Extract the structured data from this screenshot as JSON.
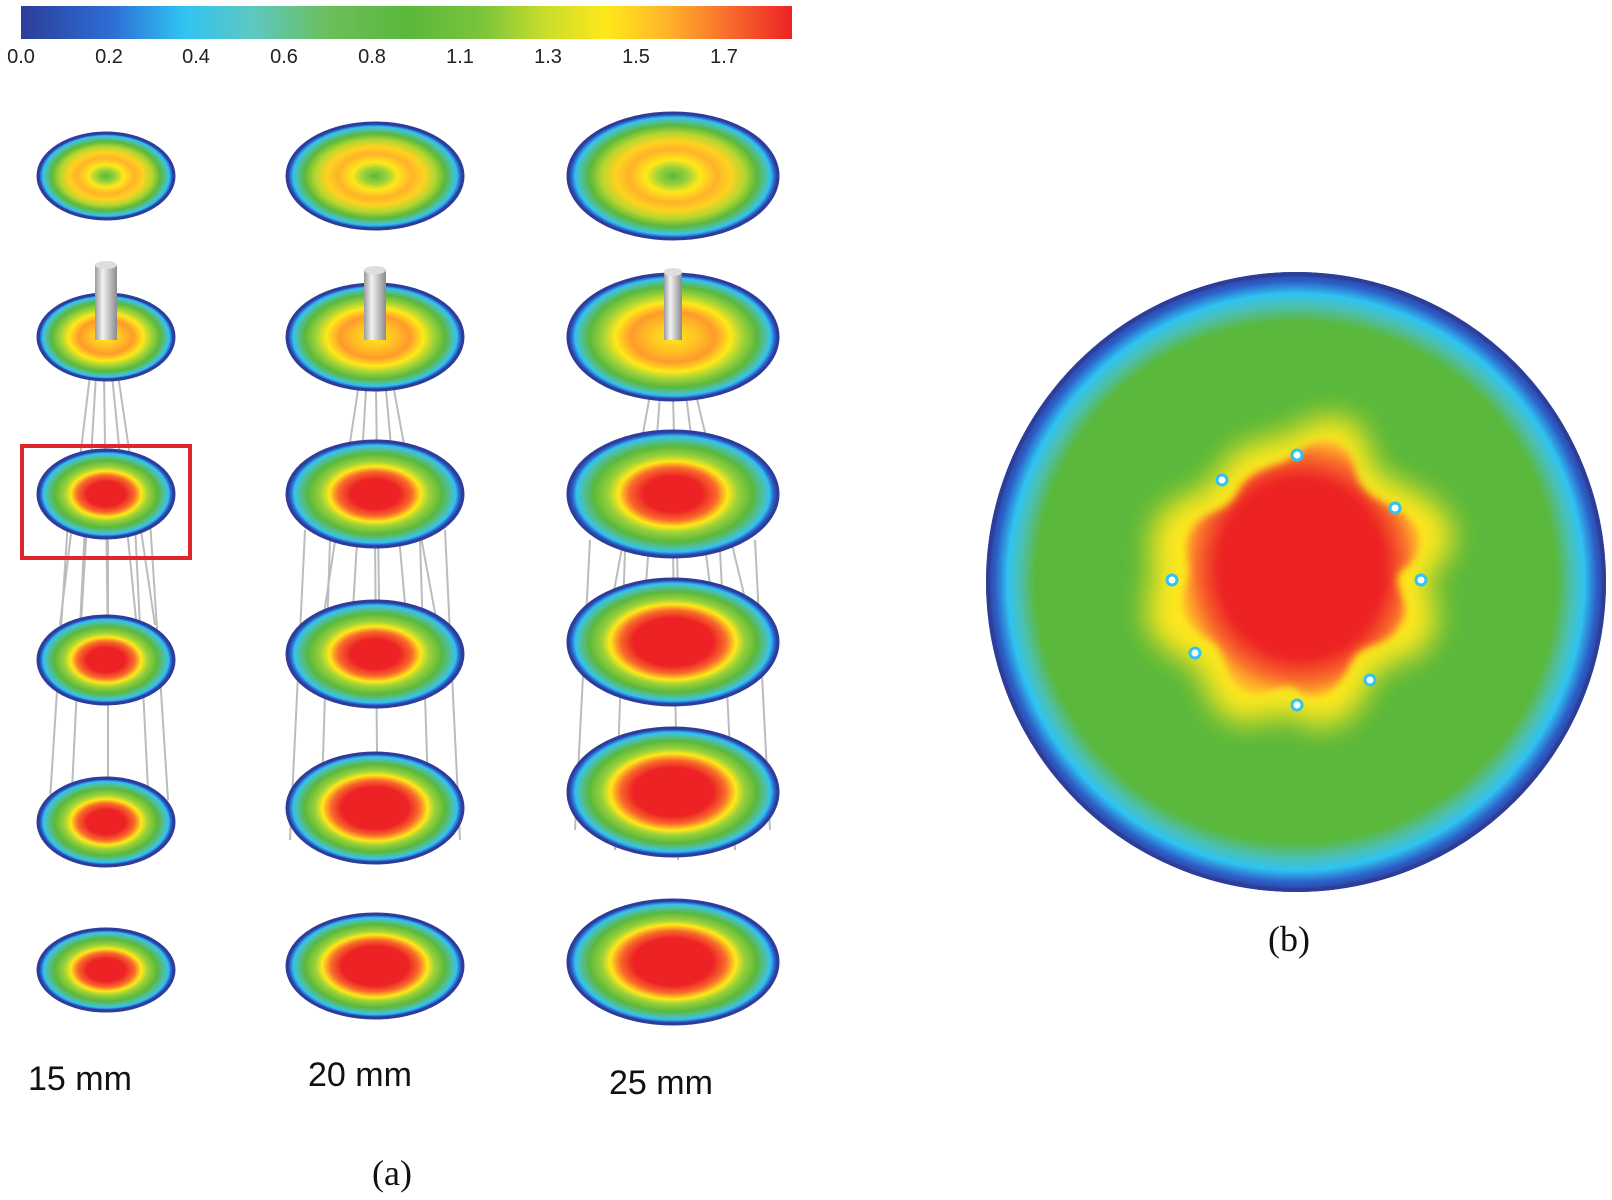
{
  "colorbar": {
    "ticks": [
      "0.0",
      "0.2",
      "0.4",
      "0.6",
      "0.8",
      "1.1",
      "1.3",
      "1.5",
      "1.7"
    ],
    "colors": {
      "low": "#2c3e99",
      "cyan": "#2fc3f2",
      "green": "#5ab83c",
      "yellow": "#ffe81a",
      "orange": "#f86a2c",
      "high": "#ed2224"
    }
  },
  "panel_a": {
    "label": "(a)",
    "columns": [
      {
        "label": "15 mm"
      },
      {
        "label": "20 mm"
      },
      {
        "label": "25 mm"
      }
    ],
    "highlight_color": "#e0252b"
  },
  "panel_b": {
    "label": "(b)"
  }
}
